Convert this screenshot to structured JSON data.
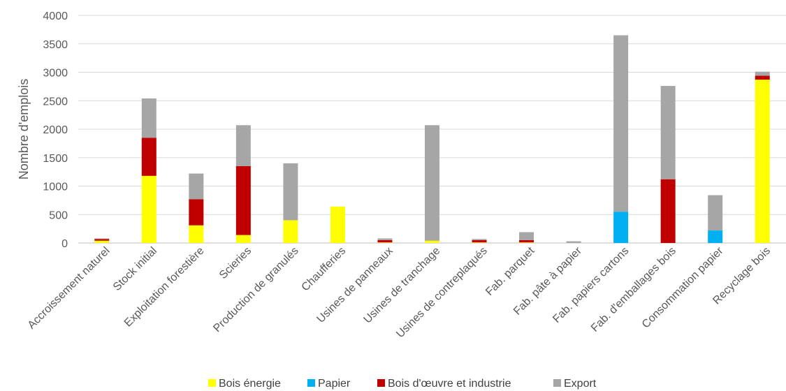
{
  "chart_data": {
    "type": "bar",
    "stacked": true,
    "title": "",
    "xlabel": "",
    "ylabel": "Nombre d'emplois",
    "ylim": [
      0,
      4000
    ],
    "yticks": [
      0,
      500,
      1000,
      1500,
      2000,
      2500,
      3000,
      3500,
      4000
    ],
    "grid": true,
    "legend_position": "bottom",
    "categories": [
      "Accroissement naturel",
      "Stock initial",
      "Exploitation forestière",
      "Scieries",
      "Production de granulés",
      "Chaufferies",
      "Usines de panneaux",
      "Usines de tranchage",
      "Usines de contreplaqués",
      "Fab. parquet",
      "Fab. pâte à papier",
      "Fab. papiers cartons",
      "Fab. d'emballages bois",
      "Consommation papier",
      "Recyclage bois"
    ],
    "series": [
      {
        "name": "Bois énergie",
        "color": "#FFFF00",
        "values": [
          40,
          1180,
          310,
          140,
          400,
          640,
          10,
          40,
          10,
          10,
          0,
          0,
          0,
          0,
          2870
        ]
      },
      {
        "name": "Papier",
        "color": "#00B0F0",
        "values": [
          0,
          0,
          0,
          0,
          0,
          0,
          0,
          0,
          0,
          0,
          0,
          550,
          0,
          220,
          0
        ]
      },
      {
        "name": "Bois d'œuvre et industrie",
        "color": "#C00000",
        "values": [
          30,
          670,
          460,
          1210,
          0,
          0,
          40,
          0,
          40,
          40,
          0,
          0,
          1120,
          0,
          70
        ]
      },
      {
        "name": "Export",
        "color": "#A6A6A6",
        "values": [
          10,
          690,
          450,
          720,
          1000,
          0,
          30,
          2030,
          20,
          140,
          30,
          3100,
          1640,
          620,
          70
        ]
      }
    ]
  }
}
